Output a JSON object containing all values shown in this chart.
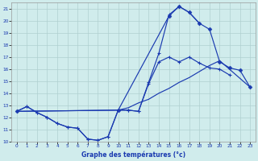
{
  "xlabel": "Graphe des températures (°c)",
  "xlim": [
    -0.5,
    23.5
  ],
  "ylim": [
    10,
    21.5
  ],
  "xticks": [
    0,
    1,
    2,
    3,
    4,
    5,
    6,
    7,
    8,
    9,
    10,
    11,
    12,
    13,
    14,
    15,
    16,
    17,
    18,
    19,
    20,
    21,
    22,
    23
  ],
  "yticks": [
    10,
    11,
    12,
    13,
    14,
    15,
    16,
    17,
    18,
    19,
    20,
    21
  ],
  "bg_color": "#d0ecec",
  "line_color": "#1a3ab0",
  "grid_color": "#b0d0d0",
  "curve1_x": [
    0,
    1,
    2,
    3,
    4,
    5,
    6,
    7,
    8,
    9,
    10,
    11,
    12,
    13,
    14,
    15,
    16,
    17,
    18
  ],
  "curve1_y": [
    12.5,
    12.9,
    12.4,
    12.0,
    11.5,
    11.2,
    11.1,
    10.2,
    10.1,
    10.4,
    12.6,
    12.6,
    12.5,
    14.9,
    17.3,
    20.5,
    21.2,
    20.7,
    19.8
  ],
  "curve2_x": [
    0,
    10,
    15,
    16,
    17,
    18,
    19,
    20,
    21,
    22,
    23
  ],
  "curve2_y": [
    12.5,
    12.6,
    20.4,
    21.2,
    20.7,
    19.8,
    19.3,
    16.6,
    16.1,
    15.9,
    14.5
  ],
  "curve3_x": [
    0,
    1,
    2,
    3,
    4,
    5,
    6,
    7,
    8,
    9,
    10,
    11,
    12,
    13,
    14,
    15,
    16,
    17,
    18,
    19,
    20,
    21
  ],
  "curve3_y": [
    12.5,
    12.9,
    12.4,
    12.0,
    11.5,
    11.2,
    11.1,
    10.2,
    10.1,
    10.4,
    12.6,
    12.6,
    12.5,
    14.8,
    16.6,
    17.0,
    16.6,
    17.0,
    16.5,
    16.1,
    16.0,
    15.5
  ],
  "curve4_x": [
    0,
    10,
    11,
    12,
    13,
    14,
    15,
    16,
    17,
    18,
    19,
    20,
    23
  ],
  "curve4_y": [
    12.5,
    12.6,
    12.8,
    13.2,
    13.5,
    14.0,
    14.4,
    14.9,
    15.3,
    15.8,
    16.3,
    16.7,
    14.5
  ]
}
